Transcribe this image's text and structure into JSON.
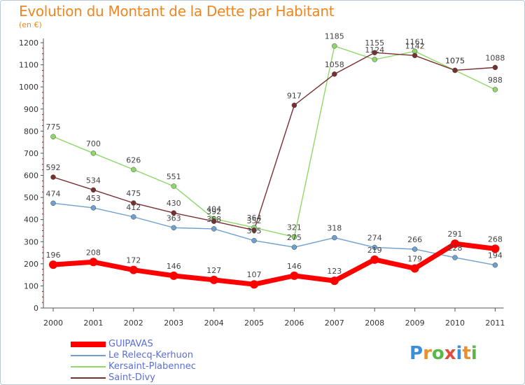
{
  "title": "Evolution du Montant de la Dette par Habitant",
  "unit_label": "(en €)",
  "logo": {
    "text": "Proxiti",
    "letters": [
      {
        "ch": "P",
        "color": "#3a8fd6"
      },
      {
        "ch": "r",
        "color": "#e8902e"
      },
      {
        "ch": "o",
        "color": "#59b848"
      },
      {
        "ch": "x",
        "color": "#e04d3c"
      },
      {
        "ch": "i",
        "color": "#3a8fd6"
      },
      {
        "ch": "t",
        "color": "#e8902e"
      },
      {
        "ch": "i",
        "color": "#59b848"
      }
    ]
  },
  "chart_data": {
    "type": "line",
    "title": "Evolution du Montant de la Dette par Habitant",
    "ylabel": "(en €)",
    "xlabel": "",
    "ylim": [
      0,
      1200
    ],
    "yticks": [
      0,
      100,
      200,
      300,
      400,
      500,
      600,
      700,
      800,
      900,
      1000,
      1100,
      1200
    ],
    "categories": [
      "2000",
      "2001",
      "2002",
      "2003",
      "2004",
      "2005",
      "2006",
      "2007",
      "2008",
      "2009",
      "2010",
      "2011"
    ],
    "grid": false,
    "legend_position": "bottom-left",
    "series": [
      {
        "name": "GUIPAVAS",
        "color": "#ff0000",
        "values": [
          196,
          208,
          172,
          146,
          127,
          107,
          146,
          123,
          219,
          179,
          291,
          268
        ]
      },
      {
        "name": "Le Relecq-Kerhuon",
        "color": "#6ea0d0",
        "values": [
          474,
          453,
          412,
          363,
          358,
          305,
          275,
          318,
          274,
          266,
          228,
          194
        ]
      },
      {
        "name": "Kersaint-Plabennec",
        "color": "#8ed86a",
        "values": [
          775,
          700,
          626,
          551,
          404,
          364,
          321,
          1185,
          1124,
          1161,
          1075,
          988
        ]
      },
      {
        "name": "Saint-Divy",
        "color": "#7a2f2f",
        "values": [
          592,
          534,
          475,
          430,
          392,
          352,
          917,
          1058,
          1155,
          1142,
          1075,
          1088
        ]
      }
    ]
  }
}
